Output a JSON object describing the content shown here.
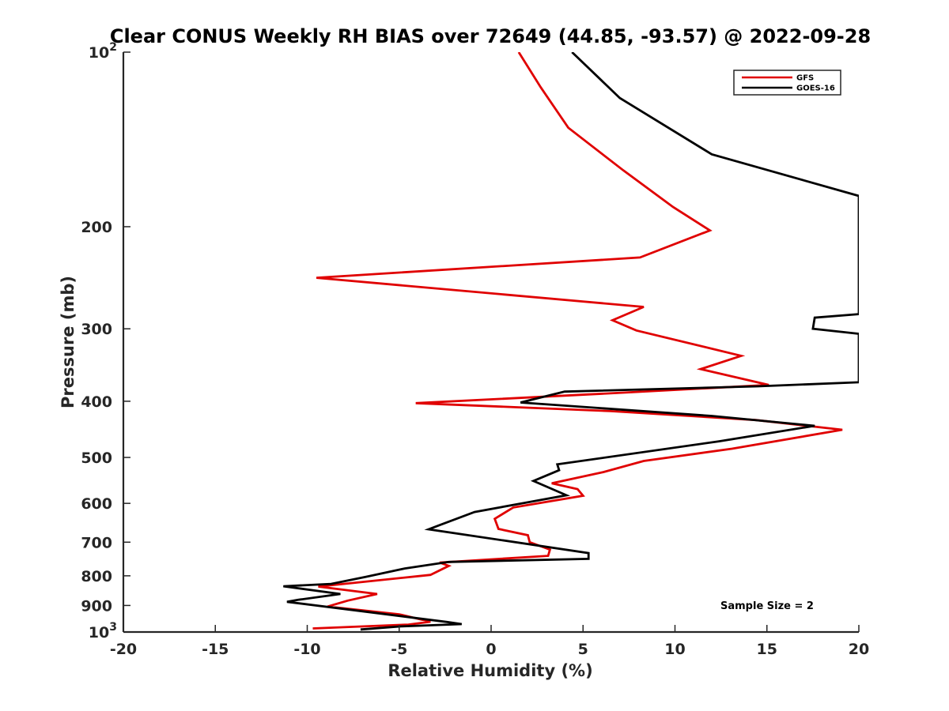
{
  "chart_data": {
    "type": "line",
    "title": "Clear CONUS Weekly RH BIAS over 72649 (44.85, -93.57) @ 2022-09-28",
    "xlabel": "Relative Humidity (%)",
    "ylabel": "Pressure (mb)",
    "xlim": [
      -20,
      20
    ],
    "ylim": [
      100,
      1000
    ],
    "y_scale": "log",
    "y_reversed": true,
    "x_ticks": [
      -20,
      -15,
      -10,
      -5,
      0,
      5,
      10,
      15,
      20
    ],
    "x_tick_labels": [
      "-20",
      "-15",
      "-10",
      "-5",
      "0",
      "5",
      "10",
      "15",
      "20"
    ],
    "y_ticks": [
      100,
      200,
      300,
      400,
      500,
      600,
      700,
      800,
      900,
      1000
    ],
    "y_tick_labels": [
      {
        "base": "10",
        "exp": "2"
      },
      {
        "base": "200",
        "exp": ""
      },
      {
        "base": "300",
        "exp": ""
      },
      {
        "base": "400",
        "exp": ""
      },
      {
        "base": "500",
        "exp": ""
      },
      {
        "base": "600",
        "exp": ""
      },
      {
        "base": "700",
        "exp": ""
      },
      {
        "base": "800",
        "exp": ""
      },
      {
        "base": "900",
        "exp": ""
      },
      {
        "base": "10",
        "exp": "3"
      }
    ],
    "grid": false,
    "legend_position": "top-right",
    "annotation": "Sample Size = 2",
    "series": [
      {
        "name": "GFS",
        "color": "#e00000",
        "points": [
          [
            1.5,
            100
          ],
          [
            2.7,
            115
          ],
          [
            4.2,
            135
          ],
          [
            7.2,
            160
          ],
          [
            9.9,
            185
          ],
          [
            11.9,
            203
          ],
          [
            8.1,
            226
          ],
          [
            -9.5,
            245
          ],
          [
            8.3,
            275
          ],
          [
            6.6,
            290
          ],
          [
            7.9,
            302
          ],
          [
            13.6,
            334
          ],
          [
            11.4,
            352
          ],
          [
            15.1,
            375
          ],
          [
            6.9,
            387
          ],
          [
            -4.1,
            403
          ],
          [
            6.5,
            416
          ],
          [
            14.4,
            431
          ],
          [
            19.1,
            448
          ],
          [
            13.1,
            483
          ],
          [
            8.3,
            507
          ],
          [
            6.1,
            530
          ],
          [
            3.3,
            554
          ],
          [
            4.7,
            567
          ],
          [
            5.0,
            582
          ],
          [
            1.2,
            610
          ],
          [
            0.2,
            638
          ],
          [
            0.4,
            664
          ],
          [
            2.0,
            681
          ],
          [
            2.1,
            700
          ],
          [
            3.2,
            721
          ],
          [
            3.1,
            739
          ],
          [
            -2.8,
            759
          ],
          [
            -2.3,
            769
          ],
          [
            -3.3,
            797
          ],
          [
            -9.4,
            835
          ],
          [
            -6.2,
            860
          ],
          [
            -7.8,
            883
          ],
          [
            -8.9,
            904
          ],
          [
            -5.0,
            932
          ],
          [
            -3.3,
            960
          ],
          [
            -4.5,
            971
          ],
          [
            -9.7,
            986
          ]
        ]
      },
      {
        "name": "GOES-16",
        "color": "#000000",
        "points": [
          [
            4.4,
            100
          ],
          [
            7.0,
            120
          ],
          [
            12.0,
            150
          ],
          [
            20.0,
            177
          ],
          [
            20.0,
            283
          ],
          [
            17.6,
            287
          ],
          [
            17.5,
            300
          ],
          [
            20.0,
            306
          ],
          [
            20.0,
            371
          ],
          [
            14.5,
            377
          ],
          [
            4.0,
            385
          ],
          [
            1.6,
            402
          ],
          [
            12.0,
            424
          ],
          [
            17.6,
            441
          ],
          [
            12.4,
            469
          ],
          [
            3.6,
            514
          ],
          [
            3.7,
            526
          ],
          [
            2.3,
            549
          ],
          [
            4.1,
            581
          ],
          [
            -0.9,
            621
          ],
          [
            -2.9,
            656
          ],
          [
            -3.4,
            665
          ],
          [
            5.3,
            731
          ],
          [
            5.3,
            748
          ],
          [
            -2.3,
            757
          ],
          [
            -4.7,
            777
          ],
          [
            -6.8,
            803
          ],
          [
            -8.7,
            826
          ],
          [
            -11.3,
            834
          ],
          [
            -8.2,
            860
          ],
          [
            -10.5,
            880
          ],
          [
            -11.1,
            887
          ],
          [
            -2.4,
            961
          ],
          [
            -1.6,
            969
          ],
          [
            -4.9,
            978
          ],
          [
            -7.1,
            990
          ]
        ]
      }
    ]
  }
}
